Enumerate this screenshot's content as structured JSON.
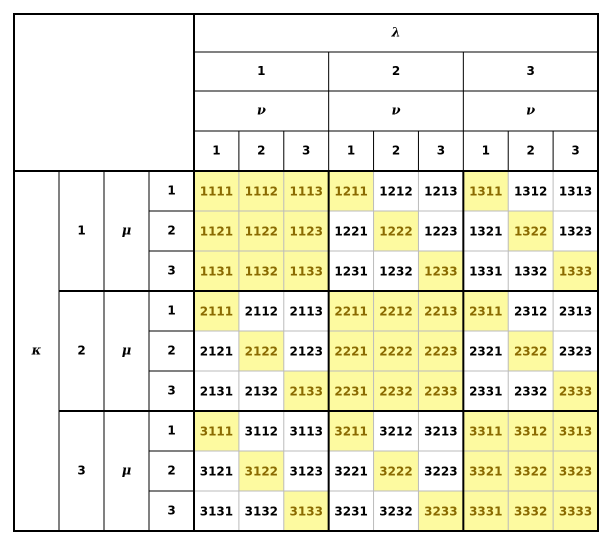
{
  "header": {
    "lambda": "λ",
    "lambda_values": [
      "1",
      "2",
      "3"
    ],
    "nu": "ν",
    "nu_values": [
      "1",
      "2",
      "3"
    ],
    "kappa": "κ",
    "kappa_values": [
      "1",
      "2",
      "3"
    ],
    "mu": "μ",
    "mu_values": [
      "1",
      "2",
      "3"
    ]
  },
  "table": {
    "rows": [
      [
        "1111",
        "1112",
        "1113",
        "1211",
        "1212",
        "1213",
        "1311",
        "1312",
        "1313"
      ],
      [
        "1121",
        "1122",
        "1123",
        "1221",
        "1222",
        "1223",
        "1321",
        "1322",
        "1323"
      ],
      [
        "1131",
        "1132",
        "1133",
        "1231",
        "1232",
        "1233",
        "1331",
        "1332",
        "1333"
      ],
      [
        "2111",
        "2112",
        "2113",
        "2211",
        "2212",
        "2213",
        "2311",
        "2312",
        "2313"
      ],
      [
        "2121",
        "2122",
        "2123",
        "2221",
        "2222",
        "2223",
        "2321",
        "2322",
        "2323"
      ],
      [
        "2131",
        "2132",
        "2133",
        "2231",
        "2232",
        "2233",
        "2331",
        "2332",
        "2333"
      ],
      [
        "3111",
        "3112",
        "3113",
        "3211",
        "3212",
        "3213",
        "3311",
        "3312",
        "3313"
      ],
      [
        "3121",
        "3122",
        "3123",
        "3221",
        "3222",
        "3223",
        "3321",
        "3322",
        "3323"
      ],
      [
        "3131",
        "3132",
        "3133",
        "3231",
        "3232",
        "3233",
        "3331",
        "3332",
        "3333"
      ]
    ]
  }
}
